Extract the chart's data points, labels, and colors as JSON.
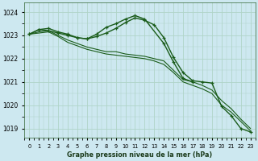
{
  "title": "Graphe pression niveau de la mer (hPa)",
  "background_color": "#cde8f0",
  "grid_color": "#b0d4c8",
  "line_color": "#1a5c1a",
  "xlim": [
    -0.5,
    23.5
  ],
  "ylim": [
    1018.6,
    1024.4
  ],
  "yticks": [
    1019,
    1020,
    1021,
    1022,
    1023,
    1024
  ],
  "x_labels": [
    "0",
    "1",
    "2",
    "3",
    "4",
    "5",
    "6",
    "7",
    "8",
    "9",
    "10",
    "11",
    "12",
    "13",
    "14",
    "15",
    "16",
    "17",
    "18",
    "19",
    "20",
    "21",
    "22",
    "23"
  ],
  "series_plain": [
    [
      1023.05,
      1023.15,
      1023.2,
      1023.0,
      1022.8,
      1022.65,
      1022.5,
      1022.4,
      1022.3,
      1022.3,
      1022.2,
      1022.15,
      1022.1,
      1022.0,
      1021.9,
      1021.5,
      1021.1,
      1021.0,
      1020.85,
      1020.65,
      1020.2,
      1019.85,
      1019.4,
      1019.0
    ],
    [
      1023.05,
      1023.1,
      1023.15,
      1022.95,
      1022.7,
      1022.55,
      1022.4,
      1022.3,
      1022.2,
      1022.15,
      1022.1,
      1022.05,
      1022.0,
      1021.9,
      1021.75,
      1021.4,
      1021.0,
      1020.85,
      1020.7,
      1020.5,
      1020.0,
      1019.7,
      1019.3,
      1018.9
    ]
  ],
  "series_marked_1": [
    1023.05,
    1023.25,
    1023.3,
    1023.15,
    1023.05,
    1022.9,
    1022.85,
    1022.95,
    1023.1,
    1023.3,
    1023.55,
    1023.75,
    1023.65,
    1023.45,
    1022.9,
    1022.05,
    1021.4,
    1021.05,
    1021.0,
    1020.95,
    1019.95,
    1019.55,
    1019.0,
    1018.85
  ],
  "series_marked_2_x": [
    0,
    1,
    2,
    3,
    4,
    5,
    6,
    7,
    8,
    9,
    10,
    11,
    12,
    14,
    15,
    16,
    17
  ],
  "series_marked_2_y": [
    1023.05,
    1023.25,
    1023.2,
    1023.1,
    1023.0,
    1022.9,
    1022.85,
    1023.05,
    1023.35,
    1023.5,
    1023.7,
    1023.85,
    1023.7,
    1022.65,
    1021.85,
    1021.15,
    1021.0
  ]
}
